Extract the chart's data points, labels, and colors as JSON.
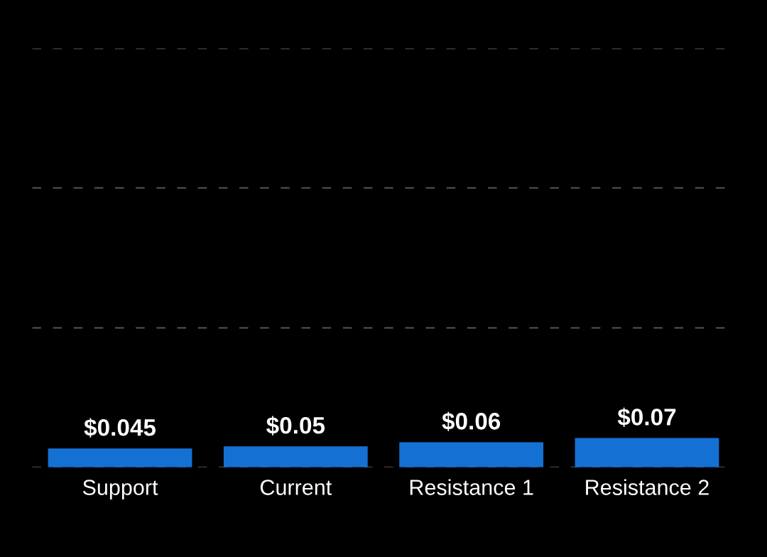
{
  "chart_data": {
    "type": "bar",
    "categories": [
      "Support",
      "Current",
      "Resistance 1",
      "Resistance 2"
    ],
    "values": [
      0.045,
      0.05,
      0.06,
      0.07
    ],
    "value_labels": [
      "$0.045",
      "$0.05",
      "$0.06",
      "$0.07"
    ],
    "color": "#1570d4",
    "ylim": [
      0,
      1.0
    ],
    "yticks": [
      {
        "value": 0,
        "label": null
      },
      {
        "value": 0.333,
        "label": null
      },
      {
        "value": 0.667,
        "label": null
      },
      {
        "value": 1.0,
        "label": null
      }
    ],
    "grid": "y",
    "tick_labels": "x"
  }
}
